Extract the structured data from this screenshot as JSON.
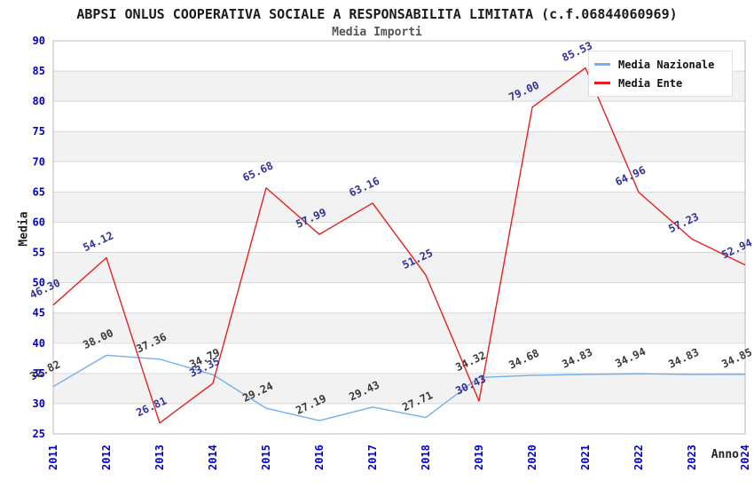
{
  "title": "ABPSI ONLUS COOPERATIVA SOCIALE A RESPONSABILITA LIMITATA (c.f.06844060969)",
  "subtitle": "Media Importi",
  "axes": {
    "y_label": "Media",
    "x_label": "Anno"
  },
  "colors": {
    "background": "#ffffff",
    "band_gray": "#f2f2f2",
    "gridline": "#d9d9d9",
    "plot_border": "#bcbcbc",
    "tick_label_blue": "#0000cd",
    "title_text": "#1a1a1a",
    "subtitle_text": "#555555",
    "axis_title_text": "#222222",
    "legend_text": "#111111",
    "nazionale_line": "#74b0e8",
    "ente_line": "#e62020",
    "nazionale_value_label": "#3a3a3a",
    "ente_value_label": "#32329b"
  },
  "chart_data": {
    "type": "line",
    "title": "Media Importi",
    "xlabel": "Anno",
    "ylabel": "Media",
    "x": [
      2011,
      2012,
      2013,
      2014,
      2015,
      2016,
      2017,
      2018,
      2019,
      2020,
      2021,
      2022,
      2023,
      2024
    ],
    "series": [
      {
        "name": "Media Nazionale",
        "color": "#74b0e8",
        "label_color": "#3a3a3a",
        "values": [
          32.82,
          38.0,
          37.36,
          34.79,
          29.24,
          27.19,
          29.43,
          27.71,
          34.32,
          34.68,
          34.83,
          34.94,
          34.83,
          34.85
        ]
      },
      {
        "name": "Media Ente",
        "color": "#e62020",
        "label_color": "#32329b",
        "values": [
          46.3,
          54.12,
          26.81,
          33.35,
          65.68,
          57.99,
          63.16,
          51.25,
          30.43,
          79.0,
          85.53,
          64.96,
          57.23,
          52.94
        ]
      }
    ],
    "ylim": [
      25,
      90
    ],
    "ytick_step": 5,
    "value_labels_decimals": 2,
    "grid": true,
    "band_pattern": "alternating horizontal gray/white bands every 5 units, 85-90 white",
    "legend_position": "top-right"
  }
}
